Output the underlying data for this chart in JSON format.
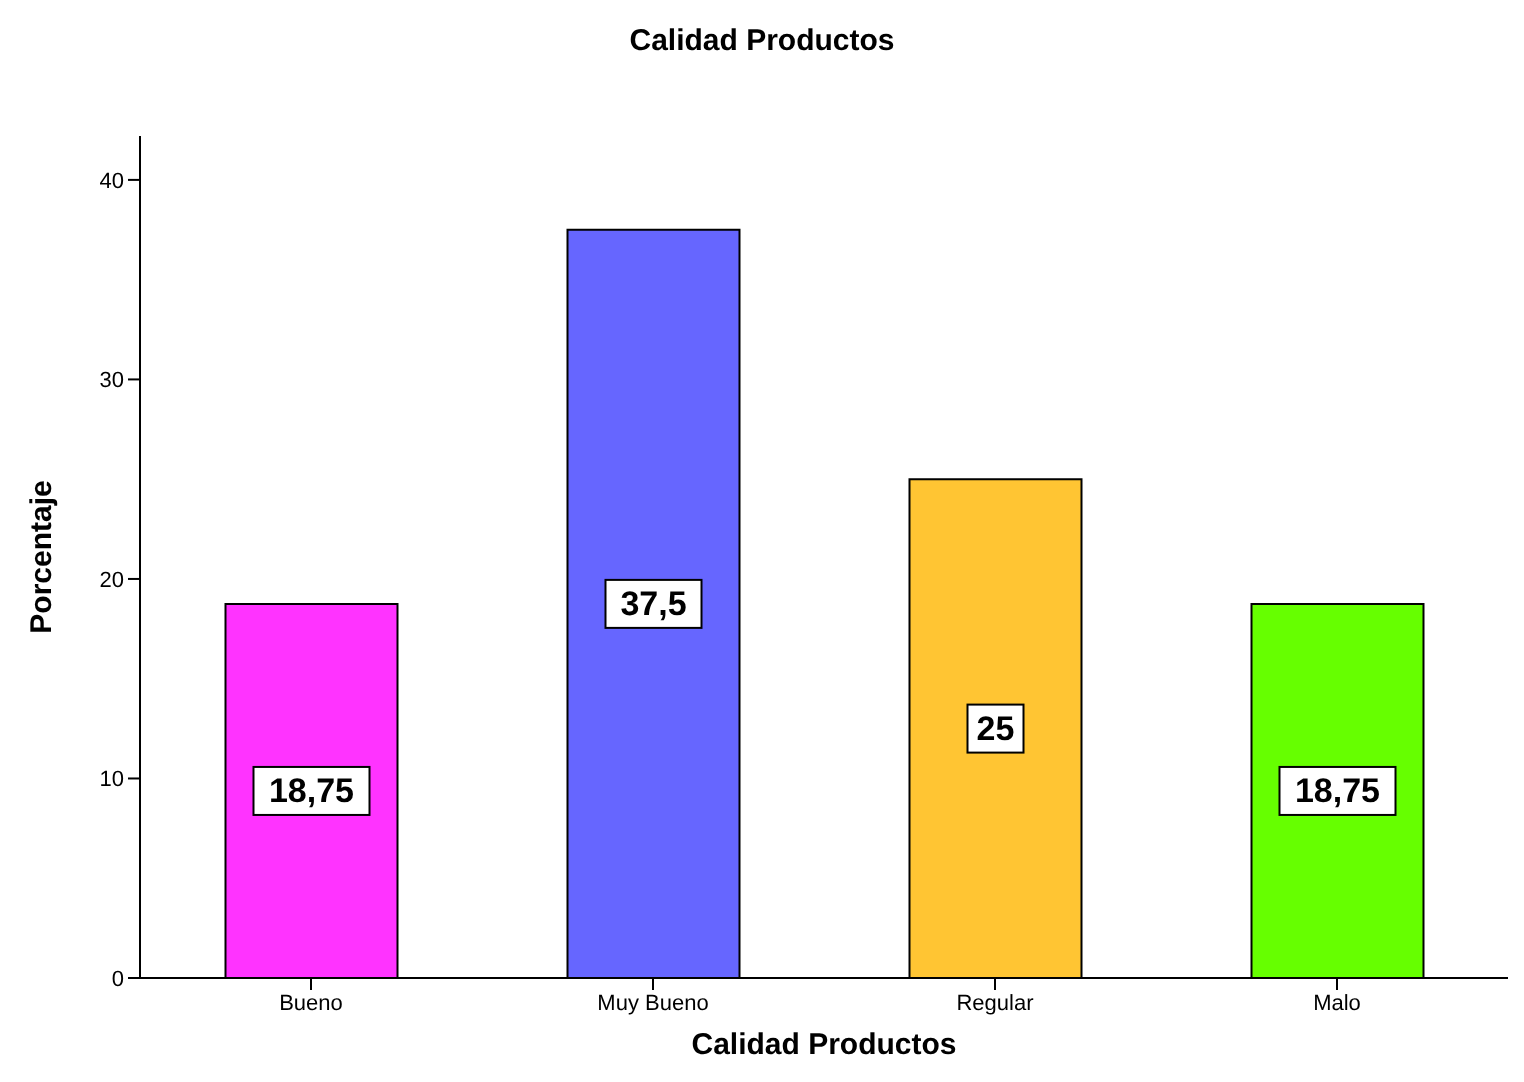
{
  "chart_data": {
    "type": "bar",
    "title": "Calidad Productos",
    "xlabel": "Calidad Productos",
    "ylabel": "Porcentaje",
    "categories": [
      "Bueno",
      "Muy Bueno",
      "Regular",
      "Malo"
    ],
    "values": [
      18.75,
      37.5,
      25,
      18.75
    ],
    "colors": [
      "#ff33ff",
      "#6666ff",
      "#ffc533",
      "#66ff00"
    ],
    "value_labels": [
      "18,75",
      "37,5",
      "25",
      "18,75"
    ],
    "ylim": [
      0,
      42.2
    ],
    "yticks": [
      0,
      10,
      20,
      30,
      40
    ],
    "grid": false,
    "legend": false
  }
}
